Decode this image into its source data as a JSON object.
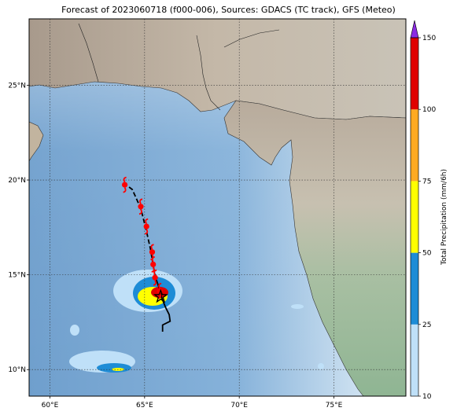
{
  "title": "Forecast of 2023060718 (f000-006), Sources: GDACS (TC track), GFS (Meteo)",
  "map": {
    "lon_range": [
      58.9,
      78.8
    ],
    "lat_range": [
      8.6,
      28.5
    ],
    "lon_ticks": [
      {
        "value": 60,
        "label": "60°E"
      },
      {
        "value": 65,
        "label": "65°E"
      },
      {
        "value": 70,
        "label": "70°E"
      },
      {
        "value": 75,
        "label": "75°E"
      }
    ],
    "lat_ticks": [
      {
        "value": 25,
        "label": "25°N"
      },
      {
        "value": 20,
        "label": "20°N"
      },
      {
        "value": 15,
        "label": "15°N"
      },
      {
        "value": 10,
        "label": "10°N"
      }
    ],
    "grid": true,
    "track_lonlat": [
      [
        65.95,
        12.0
      ],
      [
        65.95,
        12.35
      ],
      [
        66.35,
        12.55
      ],
      [
        66.3,
        12.9
      ],
      [
        66.1,
        13.3
      ],
      [
        65.9,
        13.8
      ],
      [
        65.8,
        14.2
      ],
      [
        65.6,
        14.8
      ],
      [
        65.45,
        15.5
      ],
      [
        65.3,
        16.4
      ],
      [
        65.1,
        17.3
      ],
      [
        64.8,
        18.5
      ],
      [
        64.35,
        19.5
      ],
      [
        63.95,
        19.8
      ]
    ],
    "cyclone_symbols_lonlat": [
      [
        63.95,
        19.75
      ],
      [
        64.8,
        18.6
      ],
      [
        65.1,
        17.55
      ],
      [
        65.4,
        16.2
      ],
      [
        65.45,
        15.55
      ],
      [
        65.55,
        14.85
      ],
      [
        65.8,
        14.15
      ]
    ],
    "current_position_lonlat": [
      65.85,
      13.85
    ],
    "colors": {
      "sea_deep": "#7aa9d6",
      "sea_shallow": "#d8e7f3",
      "land_low": "#9fbf9c",
      "land_high": "#c9b9a6",
      "track": "#000000",
      "cyclone_symbol": "#ff0000"
    }
  },
  "colorbar": {
    "label": "Total Precipitation (mm/6h)",
    "ticks": [
      "10",
      "25",
      "50",
      "75",
      "100",
      "150"
    ],
    "bins": [
      {
        "from": 10,
        "to": 25,
        "color": "#bfe0f8"
      },
      {
        "from": 25,
        "to": 50,
        "color": "#1e8cd6"
      },
      {
        "from": 50,
        "to": 75,
        "color": "#ffff00"
      },
      {
        "from": 75,
        "to": 100,
        "color": "#ffaa22"
      },
      {
        "from": 100,
        "to": 150,
        "color": "#e00000"
      }
    ],
    "extend_color": "#8a2be2"
  }
}
